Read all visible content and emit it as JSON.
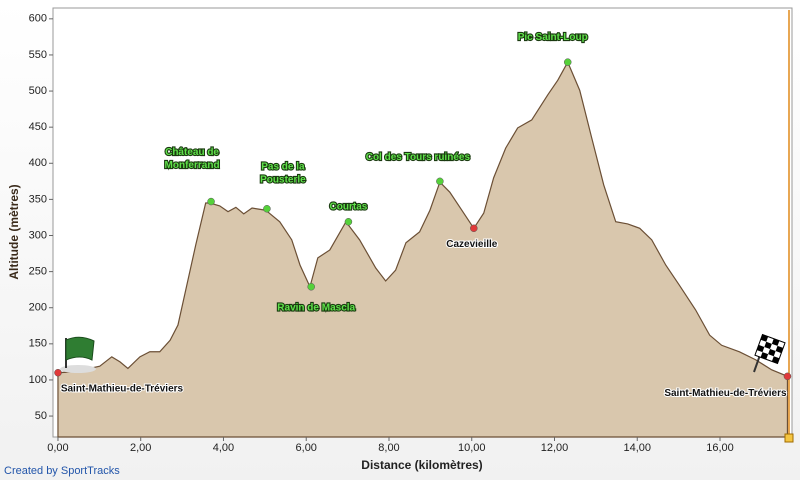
{
  "chart_data": {
    "type": "area",
    "x_label": "Distance (kilomètres)",
    "y_label": "Altitude (mètres)",
    "credit": "Created by SportTracks",
    "fill_color": "#d9c7ad",
    "line_color": "#6b4f35",
    "x": [
      0,
      0.29,
      0.77,
      1.01,
      1.3,
      1.5,
      1.69,
      1.98,
      2.22,
      2.46,
      2.71,
      2.9,
      3.09,
      3.33,
      3.57,
      3.67,
      3.91,
      4.11,
      4.3,
      4.49,
      4.69,
      5.02,
      5.36,
      5.65,
      5.85,
      6.09,
      6.28,
      6.57,
      6.96,
      7.29,
      7.68,
      7.92,
      8.16,
      8.41,
      8.74,
      8.99,
      9.23,
      9.47,
      9.76,
      10.05,
      10.29,
      10.53,
      10.82,
      11.11,
      11.45,
      11.84,
      12.08,
      12.32,
      12.61,
      12.9,
      13.19,
      13.48,
      13.77,
      14.06,
      14.35,
      14.69,
      15.02,
      15.41,
      15.75,
      16.04,
      16.47,
      16.86,
      17.25,
      17.63
    ],
    "values": [
      110,
      111,
      116,
      119,
      132,
      125,
      116,
      132,
      139,
      139,
      155,
      176,
      225,
      287,
      345,
      345,
      341,
      333,
      339,
      330,
      338,
      335,
      319,
      294,
      259,
      229,
      269,
      280,
      319,
      294,
      255,
      237,
      252,
      290,
      305,
      335,
      374,
      360,
      335,
      310,
      331,
      380,
      421,
      449,
      460,
      495,
      515,
      540,
      501,
      435,
      370,
      319,
      316,
      310,
      294,
      259,
      231,
      197,
      162,
      148,
      139,
      128,
      114,
      105
    ],
    "waypoints": [
      {
        "label": [
          "Saint-Mathieu-de-Tréviers"
        ],
        "x": 0,
        "y": 110,
        "color": "#e03a3a"
      },
      {
        "label": [
          "Château de",
          "Monferrand"
        ],
        "x": 3.7,
        "y": 347,
        "color": "#55d13a"
      },
      {
        "label": [
          "Pas de la",
          "Pousterle"
        ],
        "x": 5.05,
        "y": 337,
        "color": "#55d13a"
      },
      {
        "label": [
          "Ravin de Mascla"
        ],
        "x": 6.12,
        "y": 229,
        "color": "#55d13a"
      },
      {
        "label": [
          "Courtas"
        ],
        "x": 7.02,
        "y": 319,
        "color": "#55d13a"
      },
      {
        "label": [
          "Col des Tours ruinées"
        ],
        "x": 9.23,
        "y": 375,
        "color": "#55d13a"
      },
      {
        "label": [
          "Cazevieille"
        ],
        "x": 10.05,
        "y": 310,
        "color": "#e03a3a"
      },
      {
        "label": [
          "Pic Saint-Loup"
        ],
        "x": 12.32,
        "y": 540,
        "color": "#55d13a"
      },
      {
        "label": [
          "Saint-Mathieu-de-Tréviers"
        ],
        "x": 17.63,
        "y": 105,
        "color": "#e03a3a"
      }
    ],
    "xlim": [
      -0.12,
      17.74
    ],
    "ylim": [
      21,
      615
    ],
    "xticks": [
      {
        "value": 0,
        "label": "0,00"
      },
      {
        "value": 2,
        "label": "2,00"
      },
      {
        "value": 4,
        "label": "4,00"
      },
      {
        "value": 6,
        "label": "6,00"
      },
      {
        "value": 8,
        "label": "8,00"
      },
      {
        "value": 10,
        "label": "10,00"
      },
      {
        "value": 12,
        "label": "12,00"
      },
      {
        "value": 14,
        "label": "14,00"
      },
      {
        "value": 16,
        "label": "16,00"
      }
    ],
    "yticks": [
      50,
      100,
      150,
      200,
      250,
      300,
      350,
      400,
      450,
      500,
      550,
      600
    ]
  }
}
